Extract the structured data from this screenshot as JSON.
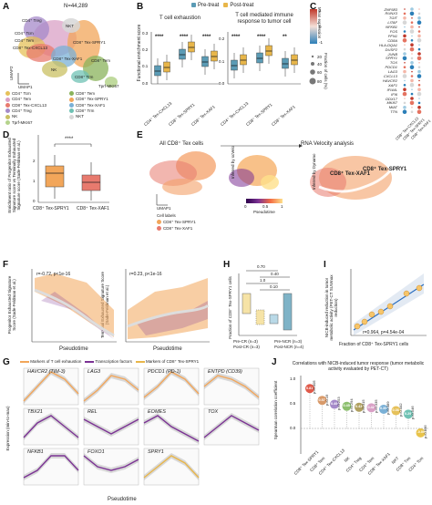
{
  "panels": {
    "A": "A",
    "B": "B",
    "C": "C",
    "D": "D",
    "E": "E",
    "F": "F",
    "G": "G",
    "H": "H",
    "I": "I",
    "J": "J"
  },
  "a": {
    "n": "N=44,289",
    "umap1": "UMAP1",
    "umap2": "UMAP2",
    "labels": [
      "CD4⁺ Treg",
      "CD4⁺ Tcm",
      "CD4⁺ Tem",
      "CD8⁺ Tex-CXCL13",
      "NKT",
      "CD8⁺ Tex-SPRY1",
      "CD8⁺ Tem",
      "CD8⁺ Tex-XAF1",
      "NK",
      "CD8⁺ Trm",
      "Tprf-MKI67"
    ],
    "legend": [
      {
        "name": "CD4⁺ Tcm",
        "color": "#e6c15a"
      },
      {
        "name": "CD8⁺ Tem",
        "color": "#8ab35b"
      },
      {
        "name": "CD4⁺ Tem",
        "color": "#d9a0c6"
      },
      {
        "name": "CD8⁺ Tex-SPRY1",
        "color": "#f2a65a"
      },
      {
        "name": "CD8⁺ Tex-CXCL13",
        "color": "#e87a6e"
      },
      {
        "name": "CD8⁺ Tex-XAF1",
        "color": "#7ab0d6"
      },
      {
        "name": "CD4⁺ Treg",
        "color": "#a58ac9"
      },
      {
        "name": "CD8⁺ Trm",
        "color": "#6fc2b4"
      },
      {
        "name": "NK",
        "color": "#c9c063"
      },
      {
        "name": "NKT",
        "color": "#d7d7d7"
      },
      {
        "name": "Tprf-MKI67",
        "color": "#b5d38c"
      }
    ]
  },
  "b": {
    "legend_pre": "Pre-treat",
    "legend_post": "Post-treat",
    "title1": "T cell exhaustion",
    "title2": "T cell mediated immune response to tumor cell",
    "ylabel": "Functional enrichment score",
    "xt": [
      "CD4⁺ Tex-CXCL13",
      "CD8⁺ Tex-SPRY1",
      "CD8⁺ Tex-XAF1",
      "CD4⁺ Tex-CXCL13",
      "CD8⁺ Tex-SPRY1",
      "CD8⁺ Tex-XAF1"
    ],
    "sig": [
      "****",
      "****",
      "****",
      "****",
      "****",
      "**"
    ],
    "yt1": [
      "0.0",
      "0.1",
      "0.2",
      "0.3"
    ],
    "yt2": [
      "0.0",
      "0.1",
      "0.2"
    ],
    "colors": {
      "pre": "#5b9bb5",
      "post": "#e8b64a"
    }
  },
  "c": {
    "genes": [
      "ZNF683",
      "RUNX3",
      "TGIT",
      "LITAF",
      "NFKB1",
      "FOS",
      "PFN1",
      "CD8A",
      "HLA-DQA1",
      "DUSP2",
      "JUNB",
      "SPRY1",
      "TOX",
      "PDCD1",
      "LAG3",
      "CXCL13",
      "HAVCR2",
      "XAF1",
      "IFI44L",
      "IFI6",
      "DDX17",
      "MKI67",
      "MIAT",
      "TTN"
    ],
    "mean_label": "Mean expression",
    "legend_vals": [
      "1",
      "0",
      "-1"
    ],
    "frac_label": "Fraction of cells (%)",
    "frac_vals": [
      "20",
      "40",
      "60",
      "80"
    ],
    "xt": [
      "CD8⁺ Tex-CXCL13",
      "CD8⁺ Tex-SPRY1",
      "CD8⁺ Tex-XAF1"
    ]
  },
  "d": {
    "ylabel": "Enrichment ratio of Progenitor Exhausted Signature score vs Terminally Exhausted Signature score (Sade-Feldman et al.)",
    "sig": "****",
    "xt": [
      "CD8⁺ Tex-SPRY1",
      "CD8⁺ Tex-XAF1"
    ],
    "yt": [
      "2",
      "1",
      "0"
    ]
  },
  "e": {
    "title1": "All CD8⁺ Tex cells",
    "title2": "RNA Velocity analysis",
    "side1": "Inferred by scVelo",
    "side2": "Inferred by Dynamo",
    "lab1": "CD8⁺ Tex-XAF1",
    "lab2": "CD8⁺ Tex-SPRY1",
    "legend_title": "Cell labels",
    "legend_items": [
      "CD8⁺ Tex-SPRY1",
      "CD8⁺ Tex-XAF1"
    ],
    "pt_label": "Pseudotime",
    "pt_ticks": [
      "0",
      "0.5",
      "1"
    ],
    "umap1": "UMAP1",
    "umap2": "UMAP2"
  },
  "f": {
    "stat1": "r=-0.72, p<1e-16",
    "stat2": "r=0.23, p<1e-16",
    "y1": "Progenitor Exhausted Signature Score (Sade-Feldman et al.)",
    "y2": "Terminal Exhausted Signature Score (Sade-Feldman et al.)",
    "xlabel": "Pseudotime"
  },
  "h": {
    "ylabel": "Fraction of CD8⁺ Tex-SPRY1 cells",
    "p": [
      "0.70",
      "0.40",
      "1.0",
      "0.10"
    ],
    "legend": [
      "Pre-CR (n=3)",
      "Pre-NCR (n=3)",
      "Post-CR (n=3)",
      "Post-NCR (n=4)"
    ]
  },
  "i": {
    "ylabel": "NICB-induced reduction in tumor metabolic activity (PET-CT SUVmax reduction)",
    "xlabel": "Fraction of CD8⁺ Tex-SPRY1 cells",
    "stat": "r=0.964, p=4.54e-04"
  },
  "g": {
    "legend": [
      "Markers of T cell exhaustion",
      "Transcription factors",
      "Markers of CD8⁺ Tex-SPRY1"
    ],
    "genes": [
      [
        "HAVCR2 (TIM-3)",
        "LAG3",
        "PDCD1 (PD-1)",
        "ENTPD (CD39)"
      ],
      [
        "TBX21",
        "REL",
        "EOMES",
        "TOX"
      ],
      [
        "NFKB1",
        "FOXO1",
        "SPRY1"
      ]
    ],
    "ylabel": "Expression (min-to-max)",
    "xlabel": "Pseudotime"
  },
  "j": {
    "title": "Correlations with NICB-induced tumor response (tumor metabolic activity evaluated by PET-CT)",
    "ylabel": "Spearman correlation coefficient",
    "cats": [
      "CD8⁺ Tex-SPRY1",
      "CD8⁺ Tem",
      "CD4⁺ Tex-CXCL13",
      "NK",
      "CD4⁺ Treg",
      "CD4⁺ Tem",
      "CD8⁺ Tex-XAF1",
      "NKT",
      "CD8⁺ Trm",
      "CD4⁺ Tcm"
    ],
    "r": [
      0.81,
      0.57,
      0.49,
      0.45,
      0.43,
      0.42,
      0.39,
      0.36,
      0.29,
      -0.09
    ],
    "labels": [
      "0.81",
      "0.57",
      "0.49",
      "0.45",
      "0.43",
      "0.42",
      "0.39",
      "0.36",
      "0.29",
      "-0.09"
    ],
    "p": [
      "p=0.005",
      "p=0.19",
      "p=0.253",
      "p=0.294",
      "p=0.315",
      "p=0.335",
      "p=0.389",
      "p=0.442",
      "p=0.546",
      "p=0.846"
    ],
    "yt": [
      "1.0",
      "0.5",
      "0.0"
    ]
  }
}
